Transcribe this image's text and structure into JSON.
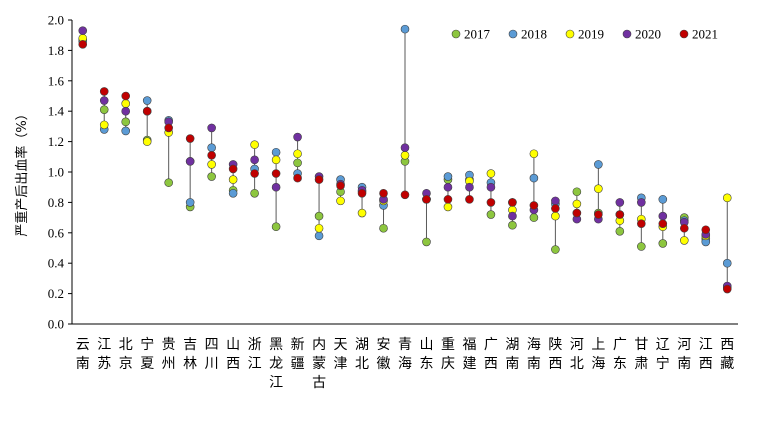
{
  "chart_data": {
    "type": "scatter",
    "title": "",
    "ylabel": "严重产后出血率（%）",
    "xlabel": "",
    "ylim": [
      0,
      2.0
    ],
    "yticks": [
      "0.0",
      "0.2",
      "0.4",
      "0.6",
      "0.8",
      "1.0",
      "1.2",
      "1.4",
      "1.6",
      "1.8",
      "2.0"
    ],
    "legend_position": "top-right",
    "categories": [
      "云南",
      "江苏",
      "北京",
      "宁夏",
      "贵州",
      "吉林",
      "四川",
      "山西",
      "浙江",
      "黑龙江",
      "新疆",
      "内蒙古",
      "天津",
      "湖北",
      "安徽",
      "青海",
      "山东",
      "重庆",
      "福建",
      "广西",
      "湖南",
      "海南",
      "陕西",
      "河北",
      "上海",
      "广东",
      "甘肃",
      "辽宁",
      "河南",
      "江西",
      "西藏"
    ],
    "series": [
      {
        "name": "2017",
        "color": "#8dc63f",
        "values": [
          1.87,
          1.41,
          1.33,
          1.21,
          0.93,
          0.77,
          0.97,
          0.88,
          0.86,
          0.64,
          1.06,
          0.71,
          0.87,
          0.87,
          0.63,
          1.07,
          0.54,
          0.95,
          0.95,
          0.72,
          0.65,
          0.7,
          0.49,
          0.87,
          0.73,
          0.61,
          0.51,
          0.53,
          0.7,
          0.56,
          0.24
        ]
      },
      {
        "name": "2018",
        "color": "#5b9bd5",
        "values": [
          1.86,
          1.28,
          1.27,
          1.47,
          1.34,
          0.8,
          1.16,
          0.86,
          1.02,
          1.13,
          0.99,
          0.58,
          0.95,
          0.9,
          0.78,
          1.94,
          0.82,
          0.97,
          0.98,
          0.93,
          0.8,
          0.96,
          0.79,
          0.73,
          1.05,
          0.72,
          0.83,
          0.82,
          0.68,
          0.54,
          0.4
        ]
      },
      {
        "name": "2019",
        "color": "#ffff00",
        "values": [
          1.88,
          1.31,
          1.45,
          1.2,
          1.26,
          1.07,
          1.05,
          0.95,
          1.18,
          1.08,
          1.12,
          0.63,
          0.81,
          0.73,
          0.81,
          1.11,
          0.82,
          0.77,
          0.94,
          0.99,
          0.75,
          1.12,
          0.71,
          0.79,
          0.89,
          0.68,
          0.69,
          0.64,
          0.55,
          0.58,
          0.83
        ]
      },
      {
        "name": "2020",
        "color": "#7030a0",
        "values": [
          1.93,
          1.47,
          1.4,
          1.4,
          1.33,
          1.07,
          1.29,
          1.05,
          1.08,
          0.9,
          1.23,
          0.97,
          0.92,
          0.88,
          0.82,
          1.16,
          0.86,
          0.9,
          0.9,
          0.9,
          0.71,
          0.75,
          0.81,
          0.69,
          0.69,
          0.8,
          0.8,
          0.71,
          0.67,
          0.59,
          0.25
        ]
      },
      {
        "name": "2021",
        "color": "#c00000",
        "values": [
          1.84,
          1.53,
          1.5,
          1.4,
          1.29,
          1.22,
          1.11,
          1.02,
          0.99,
          0.99,
          0.96,
          0.95,
          0.91,
          0.86,
          0.86,
          0.85,
          0.82,
          0.82,
          0.82,
          0.8,
          0.8,
          0.78,
          0.76,
          0.73,
          0.72,
          0.72,
          0.66,
          0.66,
          0.63,
          0.62,
          0.23
        ]
      }
    ]
  }
}
